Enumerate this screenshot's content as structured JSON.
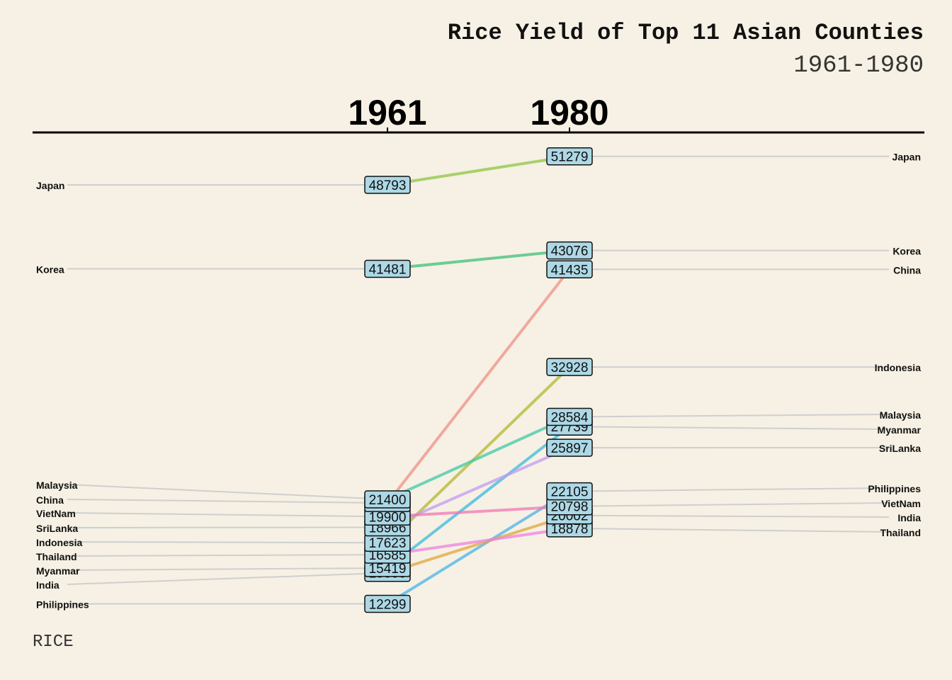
{
  "title": "Rice Yield of Top 11 Asian Counties",
  "subtitle": "1961-1980",
  "caption": "RICE",
  "chart_data": {
    "type": "line",
    "title": "Rice Yield of Top 11 Asian Counties",
    "subtitle": "1961-1980",
    "x": [
      "1961",
      "1980"
    ],
    "label_fill": "#add8e6",
    "series": [
      {
        "name": "Japan",
        "values": [
          48793,
          51279
        ],
        "color": "#8fc444"
      },
      {
        "name": "Korea",
        "values": [
          41481,
          43076
        ],
        "color": "#3dbf7a"
      },
      {
        "name": "China",
        "values": [
          21086,
          41435
        ],
        "color": "#f08f85"
      },
      {
        "name": "Indonesia",
        "values": [
          17623,
          32928
        ],
        "color": "#b4b533"
      },
      {
        "name": "Malaysia",
        "values": [
          21400,
          28584
        ],
        "color": "#3ec9a6"
      },
      {
        "name": "Myanmar",
        "values": [
          15419,
          27739
        ],
        "color": "#3ab9dd"
      },
      {
        "name": "SriLanka",
        "values": [
          18966,
          25897
        ],
        "color": "#c29bf0"
      },
      {
        "name": "Philippines",
        "values": [
          12299,
          22105
        ],
        "color": "#4ab3ea"
      },
      {
        "name": "VietNam",
        "values": [
          19900,
          20798
        ],
        "color": "#f275b6"
      },
      {
        "name": "India",
        "values": [
          15000,
          20002
        ],
        "color": "#dfa63d"
      },
      {
        "name": "Thailand",
        "values": [
          16585,
          18878
        ],
        "color": "#ec80e0"
      }
    ]
  }
}
